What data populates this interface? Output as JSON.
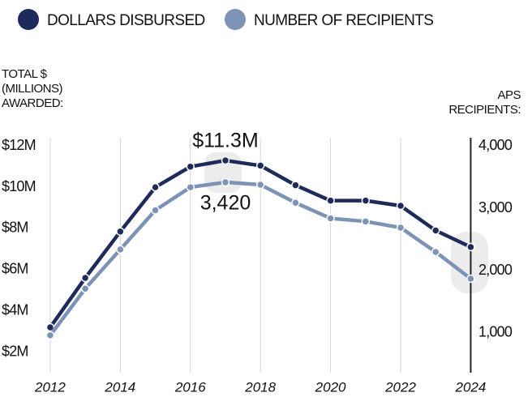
{
  "chart_data": {
    "type": "line",
    "y_label": [
      "TOTAL $",
      "(MILLIONS)",
      "AWARDED:"
    ],
    "y2_label": [
      "APS",
      "RECIPIENTS:"
    ],
    "x": [
      2012,
      2013,
      2014,
      2015,
      2016,
      2017,
      2018,
      2019,
      2020,
      2021,
      2022,
      2023,
      2024
    ],
    "xlim": [
      2011.4,
      2024.8
    ],
    "xticks": [
      2012,
      2014,
      2016,
      2018,
      2020,
      2022,
      2024
    ],
    "ylim": [
      1,
      12.6
    ],
    "yticks": [
      {
        "value": 2,
        "label": "$2M"
      },
      {
        "value": 4,
        "label": "$4M"
      },
      {
        "value": 6,
        "label": "$6M"
      },
      {
        "value": 8,
        "label": "$8M"
      },
      {
        "value": 10,
        "label": "$10M"
      },
      {
        "value": 12,
        "label": "$12M"
      }
    ],
    "y2lim": [
      360,
      4200
    ],
    "y2ticks": [
      {
        "value": 1000,
        "label": "1,000"
      },
      {
        "value": 2000,
        "label": "2,000"
      },
      {
        "value": 3000,
        "label": "3,000"
      },
      {
        "value": 4000,
        "label": "4,000"
      }
    ],
    "grid": true,
    "series": [
      {
        "name": "DOLLARS DISBURSED",
        "color": "#1e2a5a",
        "values": [
          3.2,
          5.6,
          7.85,
          10.0,
          11.0,
          11.3,
          11.05,
          10.1,
          9.35,
          9.35,
          9.1,
          7.9,
          7.1
        ],
        "value_labels": [
          null,
          null,
          null,
          null,
          null,
          "$11.3M",
          null,
          null,
          null,
          null,
          null,
          null,
          null
        ]
      },
      {
        "name": "NUMBER OF RECIPIENTS",
        "color": "#7d93b5",
        "axis": "y2",
        "values": [
          960,
          1710,
          2340,
          2970,
          3340,
          3420,
          3380,
          3090,
          2840,
          2790,
          2690,
          2300,
          1870
        ],
        "value_labels": [
          null,
          null,
          null,
          null,
          null,
          "3,420",
          null,
          null,
          null,
          null,
          null,
          null,
          null
        ]
      }
    ]
  }
}
